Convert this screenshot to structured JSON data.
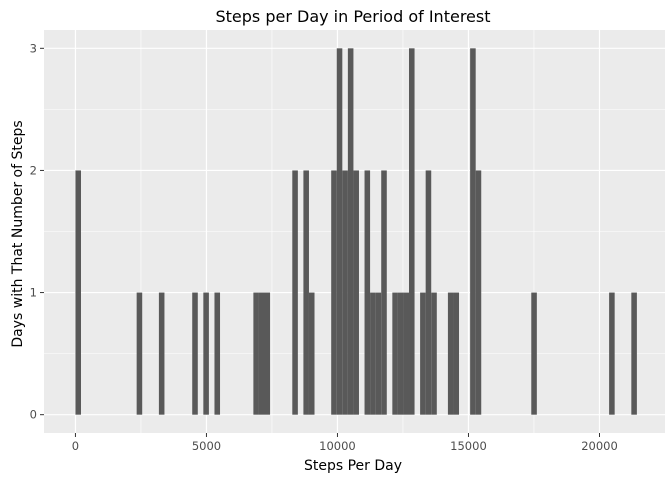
{
  "chart_data": {
    "type": "bar",
    "title": "Steps per Day in Period of Interest",
    "xlabel": "Steps Per Day",
    "ylabel": "Days with That Number of Steps",
    "xlim": [
      -1200,
      22500
    ],
    "ylim": [
      -0.15,
      3.15
    ],
    "x_ticks": [
      0,
      5000,
      10000,
      15000,
      20000
    ],
    "x_tick_labels": [
      "0",
      "5000",
      "10000",
      "15000",
      "20000"
    ],
    "y_ticks": [
      0,
      1,
      2,
      3
    ],
    "y_tick_labels": [
      "0",
      "1",
      "2",
      "3"
    ],
    "bin_width": 212,
    "grid": true,
    "legend": "none",
    "colors": {
      "bar": "#595959",
      "panel": "#ebebeb",
      "grid": "#ffffff"
    },
    "bins": [
      {
        "x": 106,
        "count": 2
      },
      {
        "x": 2442,
        "count": 1
      },
      {
        "x": 3291,
        "count": 1
      },
      {
        "x": 4563,
        "count": 1
      },
      {
        "x": 4987,
        "count": 1
      },
      {
        "x": 5412,
        "count": 1
      },
      {
        "x": 6897,
        "count": 1
      },
      {
        "x": 7109,
        "count": 1
      },
      {
        "x": 7321,
        "count": 1
      },
      {
        "x": 8382,
        "count": 2
      },
      {
        "x": 8806,
        "count": 2
      },
      {
        "x": 9018,
        "count": 1
      },
      {
        "x": 9867,
        "count": 2
      },
      {
        "x": 10079,
        "count": 3
      },
      {
        "x": 10291,
        "count": 2
      },
      {
        "x": 10503,
        "count": 3
      },
      {
        "x": 10715,
        "count": 2
      },
      {
        "x": 11139,
        "count": 2
      },
      {
        "x": 11351,
        "count": 1
      },
      {
        "x": 11563,
        "count": 1
      },
      {
        "x": 11776,
        "count": 2
      },
      {
        "x": 12200,
        "count": 1
      },
      {
        "x": 12412,
        "count": 1
      },
      {
        "x": 12624,
        "count": 1
      },
      {
        "x": 12836,
        "count": 3
      },
      {
        "x": 13260,
        "count": 1
      },
      {
        "x": 13472,
        "count": 2
      },
      {
        "x": 13685,
        "count": 1
      },
      {
        "x": 14321,
        "count": 1
      },
      {
        "x": 14533,
        "count": 1
      },
      {
        "x": 15169,
        "count": 3
      },
      {
        "x": 15381,
        "count": 2
      },
      {
        "x": 17503,
        "count": 1
      },
      {
        "x": 20473,
        "count": 1
      },
      {
        "x": 21321,
        "count": 1
      }
    ]
  }
}
